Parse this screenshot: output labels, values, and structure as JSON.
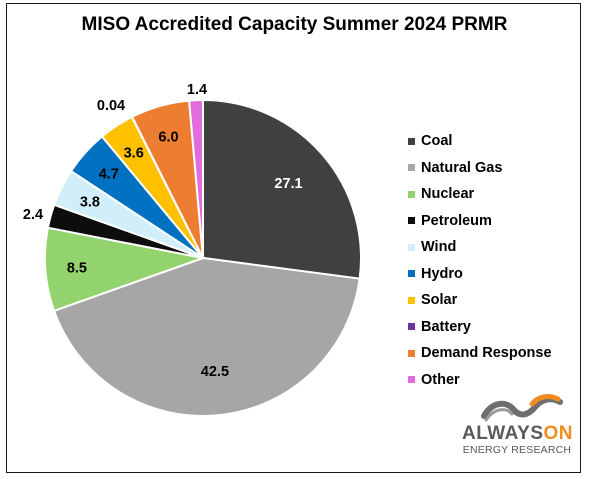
{
  "chart_data": {
    "type": "pie",
    "title": "MISO Accredited Capacity Summer 2024 PRMR",
    "start_angle_deg": 0,
    "direction": "clockwise",
    "legend_position": "right",
    "slices": [
      {
        "label": "Coal",
        "value": 27.1,
        "value_label": "27.1",
        "color": "#404040",
        "label_color": "#ffffff"
      },
      {
        "label": "Natural Gas",
        "value": 42.5,
        "value_label": "42.5",
        "color": "#a6a6a6",
        "label_color": "#000000"
      },
      {
        "label": "Nuclear",
        "value": 8.5,
        "value_label": "8.5",
        "color": "#92d36e",
        "label_color": "#000000"
      },
      {
        "label": "Petroleum",
        "value": 2.4,
        "value_label": "2.4",
        "color": "#0d0d0d",
        "label_color": "#000000"
      },
      {
        "label": "Wind",
        "value": 3.8,
        "value_label": "3.8",
        "color": "#d0effa",
        "label_color": "#000000"
      },
      {
        "label": "Hydro",
        "value": 4.7,
        "value_label": "4.7",
        "color": "#0070c0",
        "label_color": "#000000"
      },
      {
        "label": "Solar",
        "value": 3.6,
        "value_label": "3.6",
        "color": "#ffc000",
        "label_color": "#000000"
      },
      {
        "label": "Battery",
        "value": 0.04,
        "value_label": "0.04",
        "color": "#7030a0",
        "label_color": "#000000"
      },
      {
        "label": "Demand Response",
        "value": 6.0,
        "value_label": "6.0",
        "color": "#ed7d31",
        "label_color": "#000000"
      },
      {
        "label": "Other",
        "value": 1.4,
        "value_label": "1.4",
        "color": "#e36cdc",
        "label_color": "#000000"
      }
    ]
  },
  "logo": {
    "word_main": "ALWAYS",
    "word_accent": "ON",
    "subtitle": "ENERGY RESEARCH",
    "accent_color": "#f28c1e",
    "main_color": "#5a5a5a"
  }
}
